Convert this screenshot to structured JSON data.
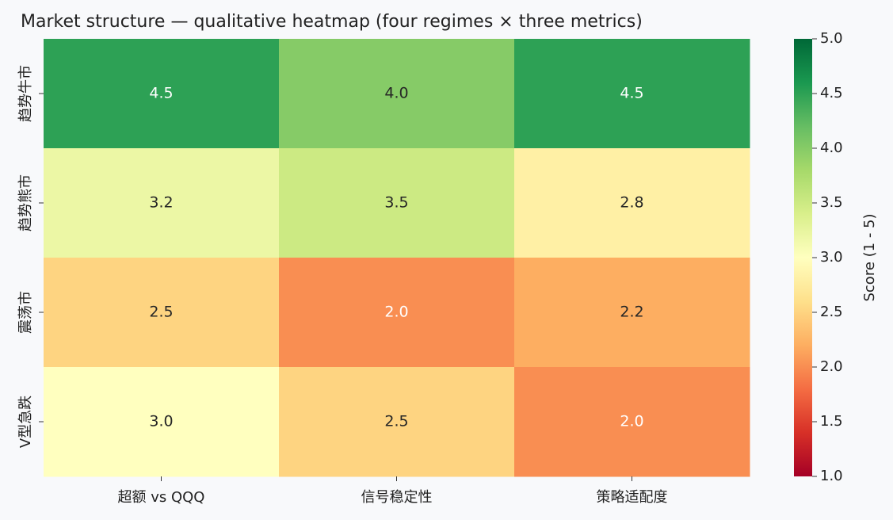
{
  "chart_data": {
    "type": "heatmap",
    "title": "Market structure — qualitative heatmap (four regimes × three metrics)",
    "x_categories": [
      "超额 vs QQQ",
      "信号稳定性",
      "策略适配度"
    ],
    "y_categories": [
      "趋势牛市",
      "趋势熊市",
      "震荡市",
      "V型急跌"
    ],
    "values": [
      [
        4.5,
        4.0,
        4.5
      ],
      [
        3.2,
        3.5,
        2.8
      ],
      [
        2.5,
        2.0,
        2.2
      ],
      [
        3.0,
        2.5,
        2.0
      ]
    ],
    "value_labels": [
      [
        "4.5",
        "4.0",
        "4.5"
      ],
      [
        "3.2",
        "3.5",
        "2.8"
      ],
      [
        "2.5",
        "2.0",
        "2.2"
      ],
      [
        "3.0",
        "2.5",
        "2.0"
      ]
    ],
    "colormap": "RdYlGn",
    "colorbar_label": "Score (1 - 5)",
    "clim": [
      1,
      5
    ],
    "cticks": [
      {
        "value": 1,
        "label": "1.0"
      },
      {
        "value": 1.5,
        "label": "1.5"
      },
      {
        "value": 2,
        "label": "2.0"
      },
      {
        "value": 2.5,
        "label": "2.5"
      },
      {
        "value": 3,
        "label": "3.0"
      },
      {
        "value": 3.5,
        "label": "3.5"
      },
      {
        "value": 4,
        "label": "4.0"
      },
      {
        "value": 4.5,
        "label": "4.5"
      },
      {
        "value": 5,
        "label": "5.0"
      }
    ]
  }
}
